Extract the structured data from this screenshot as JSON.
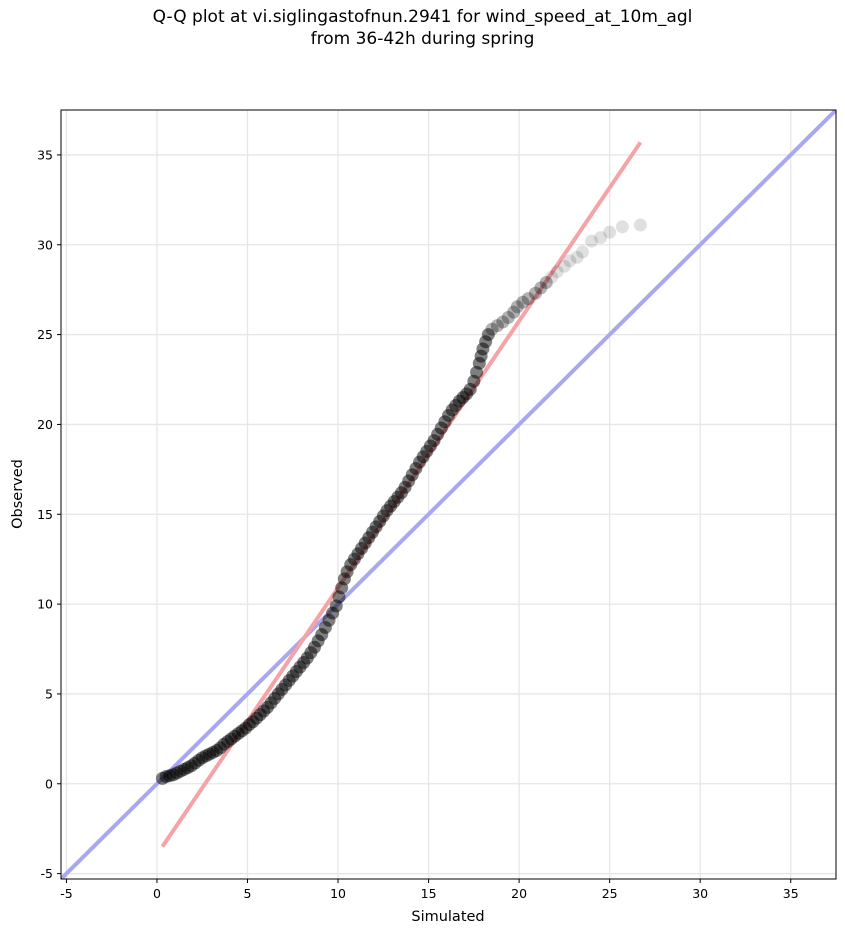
{
  "chart_data": {
    "type": "scatter",
    "title_lines": [
      "Q-Q plot at vi.siglingastofnun.2941 for wind_speed_at_10m_agl",
      "from 36-42h during spring"
    ],
    "xlabel": "Simulated",
    "ylabel": "Observed",
    "xlim": [
      -5.3,
      37.5
    ],
    "ylim": [
      -5.3,
      37.5
    ],
    "xticks": [
      -5,
      0,
      5,
      10,
      15,
      20,
      25,
      30,
      35
    ],
    "yticks": [
      -5,
      0,
      5,
      10,
      15,
      20,
      25,
      30,
      35
    ],
    "grid": true,
    "colors": {
      "points": "#000000",
      "fit_line": "#f4a3a6",
      "identity_line": "#a8a8f0",
      "grid": "#e6e6e6"
    },
    "reference_lines": [
      {
        "kind": "identity",
        "x": [
          -5.3,
          37.5
        ],
        "y": [
          -5.3,
          37.5
        ]
      },
      {
        "kind": "fit",
        "x": [
          0.3,
          26.7
        ],
        "y": [
          -3.5,
          35.7
        ]
      }
    ],
    "quantile_points": [
      [
        0.3,
        0.3
      ],
      [
        0.5,
        0.4
      ],
      [
        0.7,
        0.45
      ],
      [
        0.9,
        0.5
      ],
      [
        1.1,
        0.6
      ],
      [
        1.3,
        0.7
      ],
      [
        1.5,
        0.8
      ],
      [
        1.7,
        0.9
      ],
      [
        1.9,
        1.0
      ],
      [
        2.1,
        1.15
      ],
      [
        2.3,
        1.3
      ],
      [
        2.5,
        1.45
      ],
      [
        2.7,
        1.55
      ],
      [
        2.9,
        1.65
      ],
      [
        3.1,
        1.75
      ],
      [
        3.3,
        1.85
      ],
      [
        3.5,
        2.0
      ],
      [
        3.7,
        2.2
      ],
      [
        3.9,
        2.35
      ],
      [
        4.1,
        2.5
      ],
      [
        4.3,
        2.65
      ],
      [
        4.5,
        2.8
      ],
      [
        4.7,
        2.95
      ],
      [
        4.9,
        3.1
      ],
      [
        5.1,
        3.3
      ],
      [
        5.3,
        3.45
      ],
      [
        5.5,
        3.65
      ],
      [
        5.7,
        3.85
      ],
      [
        5.9,
        4.05
      ],
      [
        6.1,
        4.25
      ],
      [
        6.3,
        4.5
      ],
      [
        6.5,
        4.75
      ],
      [
        6.7,
        5.0
      ],
      [
        6.9,
        5.25
      ],
      [
        7.1,
        5.5
      ],
      [
        7.3,
        5.75
      ],
      [
        7.5,
        6.0
      ],
      [
        7.7,
        6.25
      ],
      [
        7.9,
        6.5
      ],
      [
        8.1,
        6.75
      ],
      [
        8.3,
        7.0
      ],
      [
        8.5,
        7.3
      ],
      [
        8.7,
        7.6
      ],
      [
        8.9,
        7.95
      ],
      [
        9.1,
        8.3
      ],
      [
        9.3,
        8.7
      ],
      [
        9.5,
        9.1
      ],
      [
        9.7,
        9.5
      ],
      [
        9.9,
        9.9
      ],
      [
        10.05,
        10.4
      ],
      [
        10.2,
        10.9
      ],
      [
        10.35,
        11.4
      ],
      [
        10.5,
        11.8
      ],
      [
        10.7,
        12.2
      ],
      [
        10.9,
        12.5
      ],
      [
        11.1,
        12.8
      ],
      [
        11.3,
        13.1
      ],
      [
        11.5,
        13.4
      ],
      [
        11.7,
        13.7
      ],
      [
        11.9,
        14.0
      ],
      [
        12.1,
        14.3
      ],
      [
        12.3,
        14.6
      ],
      [
        12.5,
        14.9
      ],
      [
        12.7,
        15.2
      ],
      [
        12.9,
        15.45
      ],
      [
        13.1,
        15.7
      ],
      [
        13.3,
        15.95
      ],
      [
        13.5,
        16.2
      ],
      [
        13.7,
        16.5
      ],
      [
        13.9,
        16.85
      ],
      [
        14.1,
        17.2
      ],
      [
        14.3,
        17.55
      ],
      [
        14.5,
        17.9
      ],
      [
        14.7,
        18.2
      ],
      [
        14.9,
        18.5
      ],
      [
        15.1,
        18.8
      ],
      [
        15.3,
        19.1
      ],
      [
        15.5,
        19.45
      ],
      [
        15.7,
        19.8
      ],
      [
        15.9,
        20.15
      ],
      [
        16.1,
        20.5
      ],
      [
        16.3,
        20.8
      ],
      [
        16.5,
        21.05
      ],
      [
        16.7,
        21.3
      ],
      [
        16.9,
        21.5
      ],
      [
        17.1,
        21.7
      ],
      [
        17.3,
        21.95
      ],
      [
        17.5,
        22.4
      ],
      [
        17.65,
        22.9
      ],
      [
        17.8,
        23.4
      ],
      [
        17.9,
        23.8
      ],
      [
        18.0,
        24.2
      ],
      [
        18.15,
        24.6
      ],
      [
        18.3,
        25.0
      ],
      [
        18.5,
        25.3
      ],
      [
        18.8,
        25.5
      ],
      [
        19.1,
        25.7
      ],
      [
        19.4,
        25.95
      ],
      [
        19.7,
        26.25
      ],
      [
        19.9,
        26.55
      ],
      [
        20.2,
        26.8
      ],
      [
        20.5,
        27.0
      ],
      [
        20.9,
        27.3
      ],
      [
        21.2,
        27.6
      ],
      [
        21.5,
        27.9
      ],
      [
        21.8,
        28.2
      ],
      [
        22.1,
        28.5
      ],
      [
        22.5,
        28.8
      ],
      [
        22.8,
        29.1
      ],
      [
        23.2,
        29.3
      ],
      [
        23.5,
        29.6
      ],
      [
        24.0,
        30.2
      ],
      [
        24.5,
        30.4
      ],
      [
        25.0,
        30.7
      ],
      [
        25.7,
        31.0
      ],
      [
        26.7,
        31.1
      ]
    ]
  }
}
